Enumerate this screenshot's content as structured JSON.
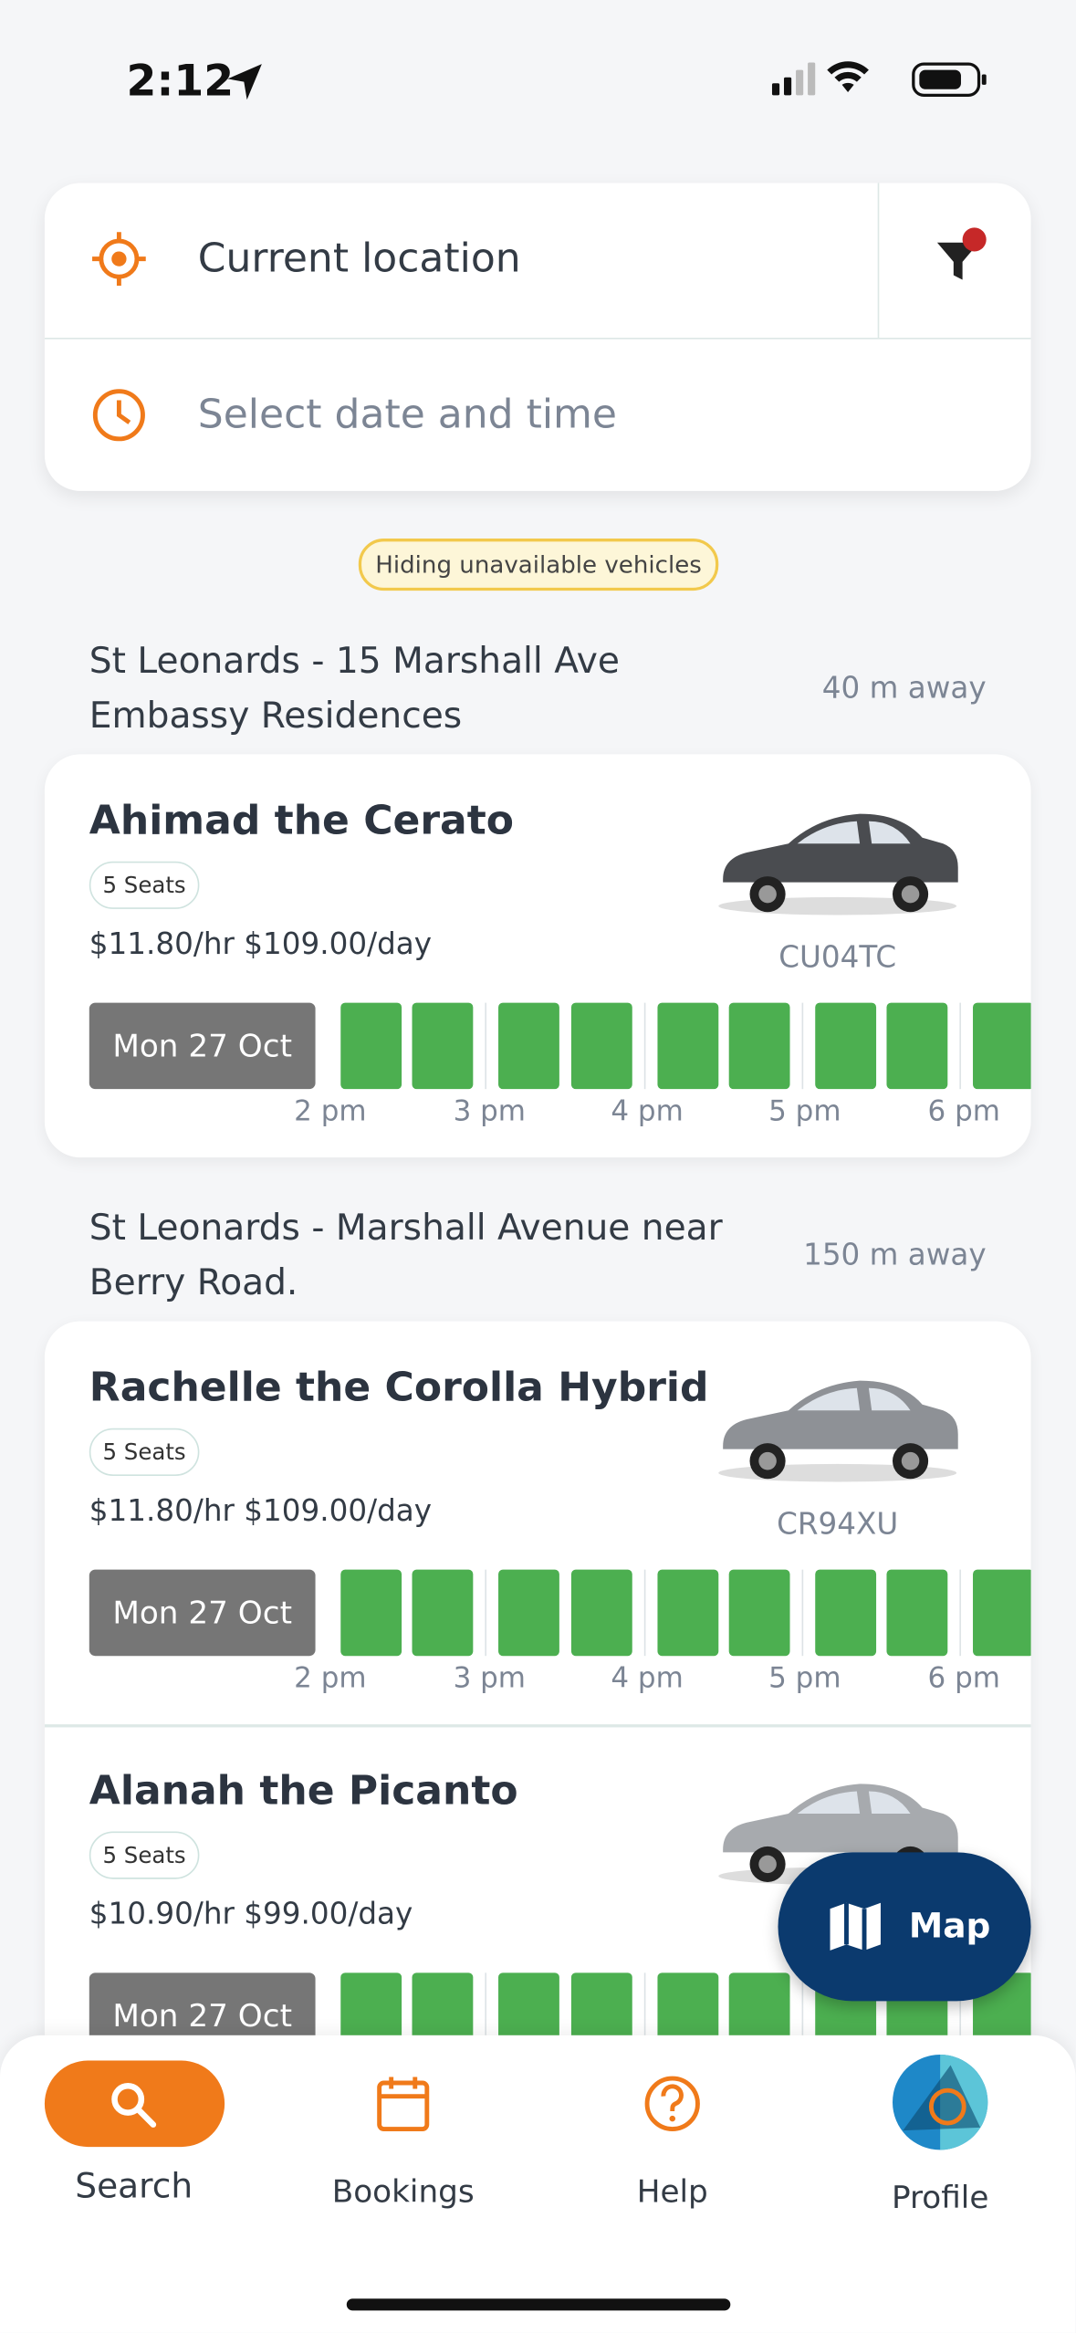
{
  "status_bar": {
    "time": "2:12"
  },
  "search": {
    "location": "Current location",
    "datetime_placeholder": "Select date and time"
  },
  "filter_badge": "Hiding unavailable vehicles",
  "locations": [
    {
      "address": [
        "St Leonards - 15 Marshall Ave",
        "Embassy Residences"
      ],
      "distance": "40 m away",
      "vehicles": [
        {
          "name": "Ahimad the Cerato",
          "seats": "5 Seats",
          "price": "$11.80/hr $109.00/day",
          "plate": "CU04TC",
          "date": "Mon 27 Oct",
          "times": [
            "2 pm",
            "3 pm",
            "4 pm",
            "5 pm",
            "6 pm"
          ],
          "color": "#4a4c50"
        }
      ]
    },
    {
      "address": [
        "St Leonards - Marshall Avenue near",
        "Berry Road."
      ],
      "distance": "150 m away",
      "vehicles": [
        {
          "name": "Rachelle the Corolla Hybrid",
          "seats": "5 Seats",
          "price": "$11.80/hr $109.00/day",
          "plate": "CR94XU",
          "date": "Mon 27 Oct",
          "times": [
            "2 pm",
            "3 pm",
            "4 pm",
            "5 pm",
            "6 pm"
          ],
          "color": "#8e9196"
        },
        {
          "name": "Alanah the Picanto",
          "seats": "5 Seats",
          "price": "$10.90/hr $99.00/day",
          "date": "Mon 27 Oct",
          "color": "#a7aaae"
        }
      ]
    }
  ],
  "map_button": "Map",
  "nav": [
    "Search",
    "Bookings",
    "Help",
    "Profile"
  ]
}
